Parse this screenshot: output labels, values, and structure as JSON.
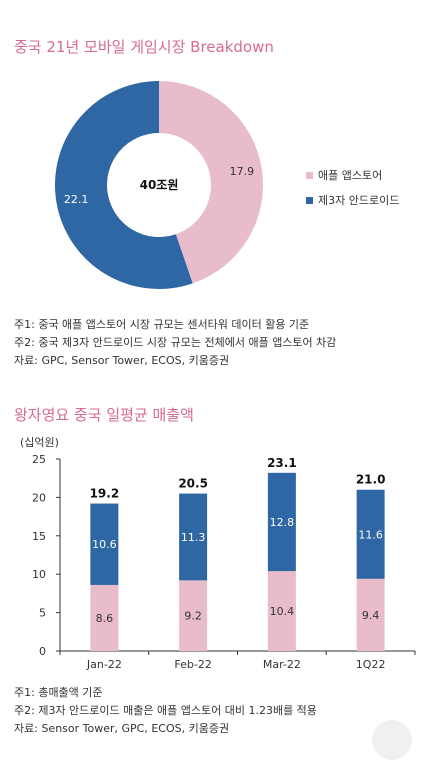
{
  "section1": {
    "title": "중국 21년 모바일 게임시장 Breakdown",
    "notes": [
      "주1: 중국 애플 앱스토어 시장 규모는 센서타워 데이터 활용 기준",
      "주2: 중국 제3자 안드로이드 시장 규모는 전체에서 애플 앱스토어 차감",
      "자료: GPC, Sensor Tower, ECOS, 키움증권"
    ]
  },
  "section2": {
    "title": "왕자영요 중국 일평균 매출액",
    "unit": "(십억원)",
    "notes": [
      "주1: 총매출액 기준",
      "주2: 제3자 안드로이드 매출은 애플 앱스토어 대비 1.23배를 적용",
      "자료: Sensor Tower, GPC, ECOS, 키움증권"
    ]
  },
  "colors": {
    "pink": "#e8bccb",
    "blue": "#2e67a3",
    "title": "#d86b8f"
  },
  "chart_data": [
    {
      "type": "pie",
      "center_label": "40조원",
      "series": [
        {
          "name": "애플 앱스토어",
          "value": 17.9,
          "label": "17.9",
          "color": "#e8bccb"
        },
        {
          "name": "제3자 안드로이드",
          "value": 22.1,
          "label": "22.1",
          "color": "#2e67a3"
        }
      ],
      "legend_position": "right"
    },
    {
      "type": "bar",
      "stacked": true,
      "ylabel": "(십억원)",
      "ylim": [
        0,
        25
      ],
      "yticks": [
        0,
        5,
        10,
        15,
        20,
        25
      ],
      "categories": [
        "Jan-22",
        "Feb-22",
        "Mar-22",
        "1Q22"
      ],
      "series": [
        {
          "values": [
            8.6,
            9.2,
            10.4,
            9.4
          ],
          "labels": [
            "8.6",
            "9.2",
            "10.4",
            "9.4"
          ],
          "color": "#e8bccb"
        },
        {
          "values": [
            10.6,
            11.3,
            12.8,
            11.6
          ],
          "labels": [
            "10.6",
            "11.3",
            "12.8",
            "11.6"
          ],
          "color": "#2e67a3"
        }
      ],
      "totals": [
        "19.2",
        "20.5",
        "23.1",
        "21.0"
      ],
      "grid": false
    }
  ]
}
